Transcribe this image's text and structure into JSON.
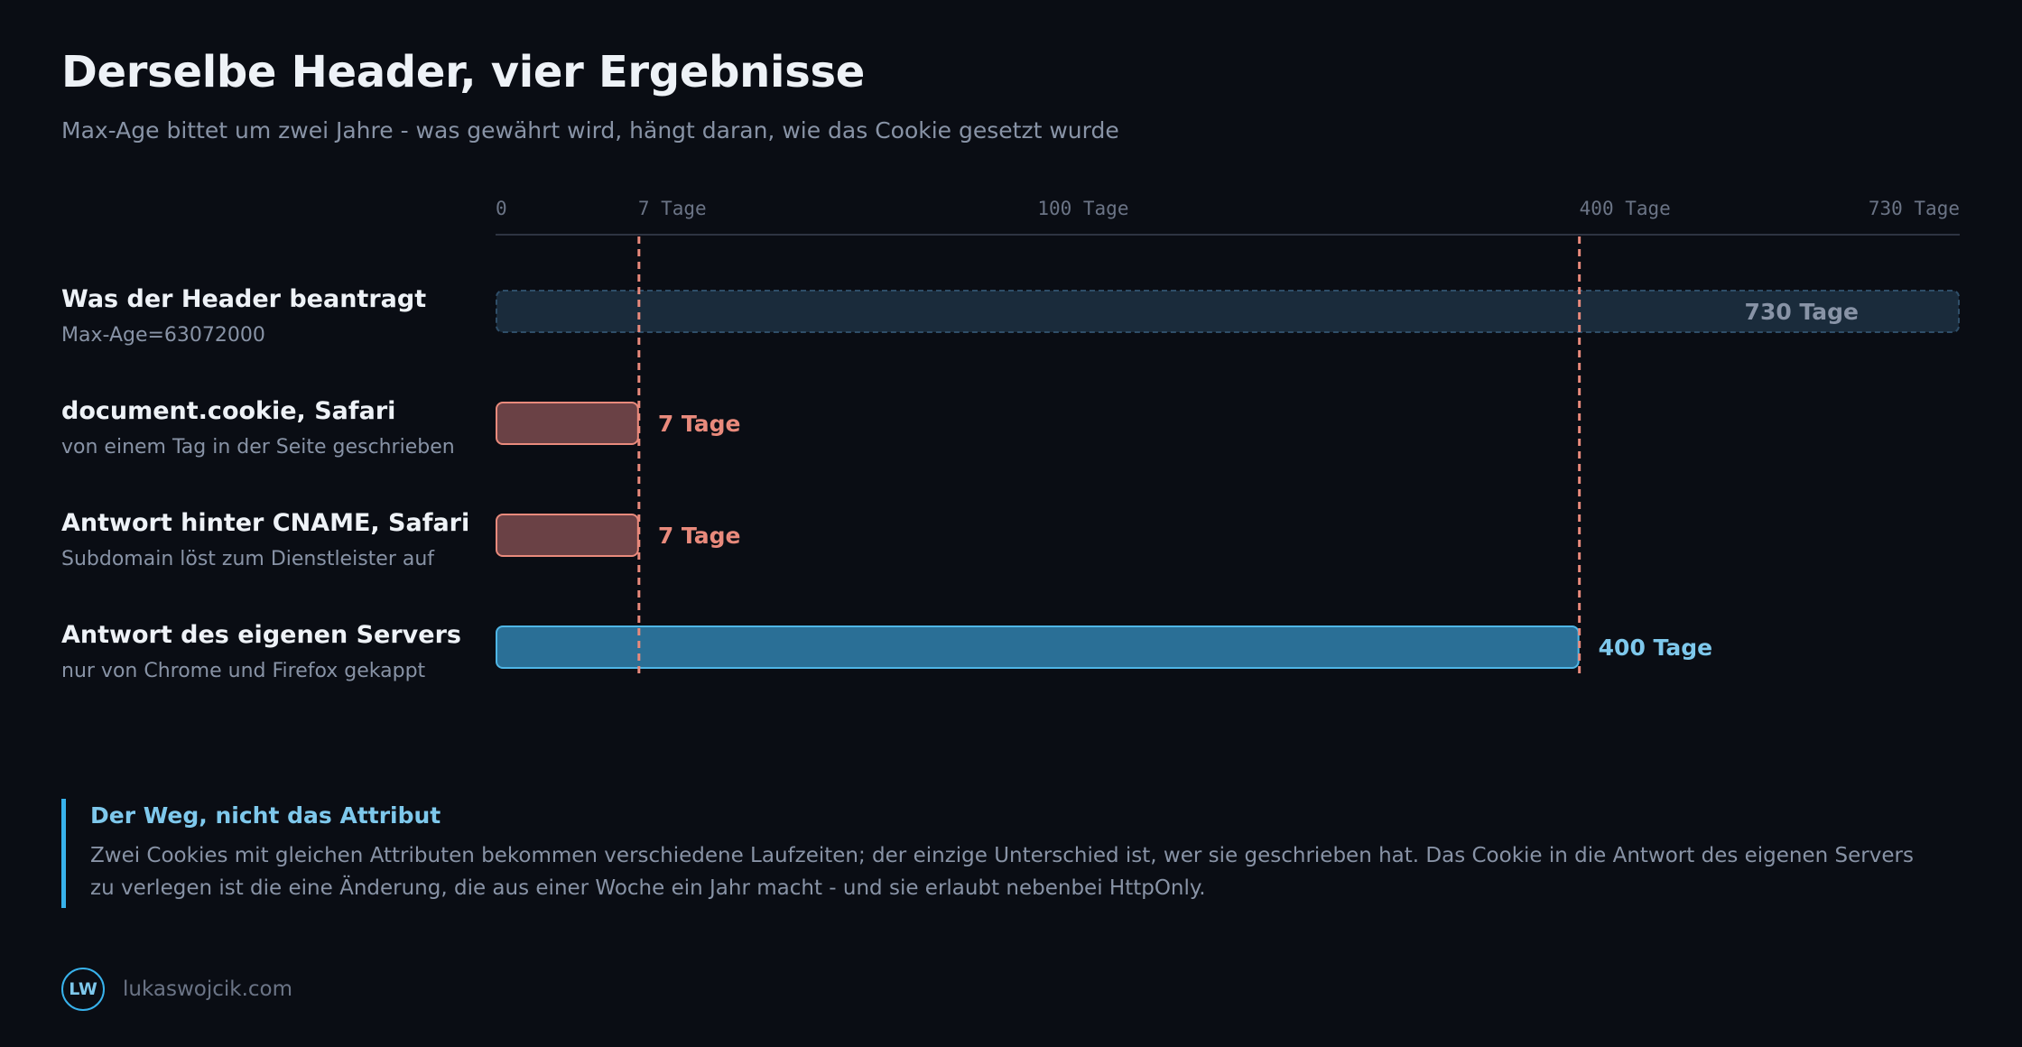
{
  "title": "Derselbe Header, vier Ergebnisse",
  "subtitle": "Max-Age bittet um zwei Jahre - was gewährt wird, hängt daran, wie das Cookie gesetzt wurde",
  "chart_data": {
    "type": "bar",
    "orientation": "horizontal",
    "x_scale": "sqrt",
    "xlim": [
      0,
      730
    ],
    "ticks": [
      {
        "value": 0,
        "label": "0"
      },
      {
        "value": 7,
        "label": "7 Tage"
      },
      {
        "value": 100,
        "label": "100 Tage"
      },
      {
        "value": 400,
        "label": "400 Tage"
      },
      {
        "value": 730,
        "label": "730 Tage"
      }
    ],
    "reference_lines": [
      7,
      400
    ],
    "categories": [
      {
        "label": "Was der Header beantragt",
        "sublabel": "Max-Age=63072000",
        "value": 730,
        "value_label": "730 Tage",
        "style": "requested"
      },
      {
        "label": "document.cookie, Safari",
        "sublabel": "von einem Tag in der Seite geschrieben",
        "value": 7,
        "value_label": "7 Tage",
        "style": "capped"
      },
      {
        "label": "Antwort hinter CNAME, Safari",
        "sublabel": "Subdomain löst zum Dienstleister auf",
        "value": 7,
        "value_label": "7 Tage",
        "style": "capped"
      },
      {
        "label": "Antwort des eigenen Servers",
        "sublabel": "nur von Chrome und Firefox gekappt",
        "value": 400,
        "value_label": "400 Tage",
        "style": "server"
      }
    ],
    "colors": {
      "requested": "#1a2b3b",
      "capped": "#6a4145",
      "capped_text": "#e98a7c",
      "server": "#2a6f96",
      "server_text": "#7ec8ec",
      "reference_line": "#e98a7c"
    }
  },
  "note": {
    "title": "Der Weg, nicht das Attribut",
    "body": "Zwei Cookies mit gleichen Attributen bekommen verschiedene Laufzeiten; der einzige Unterschied ist, wer sie geschrieben hat. Das Cookie in die Antwort des eigenen Servers zu verlegen ist die eine Änderung, die aus einer Woche ein Jahr macht - und sie erlaubt nebenbei HttpOnly."
  },
  "footer": {
    "logo": "LW",
    "site": "lukaswojcik.com"
  }
}
